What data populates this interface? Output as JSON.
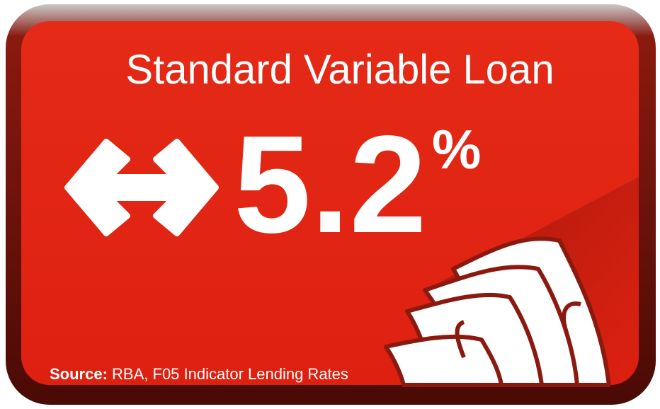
{
  "title": "Standard Variable Loan",
  "rate": {
    "value": 5.2,
    "unit": "%"
  },
  "source": {
    "label": "Source:",
    "text": "RBA, F05 Indicator Lending Rates"
  }
}
